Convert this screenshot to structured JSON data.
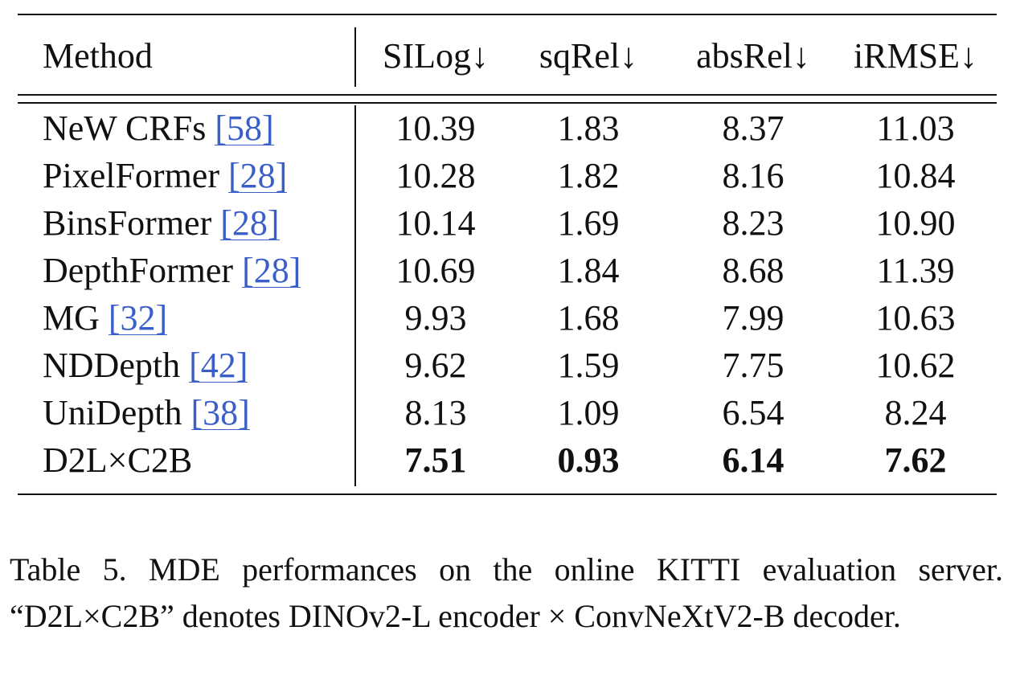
{
  "table": {
    "headers": {
      "method": "Method",
      "silog": "SILog↓",
      "sqrel": "sqRel↓",
      "absrel": "absRel↓",
      "irmse": "iRMSE↓"
    },
    "rows": [
      {
        "method": "NeW CRFs",
        "ref": "[58]",
        "silog": "10.39",
        "sqrel": "1.83",
        "absrel": "8.37",
        "irmse": "11.03"
      },
      {
        "method": "PixelFormer",
        "ref": "[28]",
        "silog": "10.28",
        "sqrel": "1.82",
        "absrel": "8.16",
        "irmse": "10.84"
      },
      {
        "method": "BinsFormer",
        "ref": "[28]",
        "silog": "10.14",
        "sqrel": "1.69",
        "absrel": "8.23",
        "irmse": "10.90"
      },
      {
        "method": "DepthFormer",
        "ref": "[28]",
        "silog": "10.69",
        "sqrel": "1.84",
        "absrel": "8.68",
        "irmse": "11.39"
      },
      {
        "method": "MG",
        "ref": "[32]",
        "silog": "9.93",
        "sqrel": "1.68",
        "absrel": "7.99",
        "irmse": "10.63"
      },
      {
        "method": "NDDepth",
        "ref": "[42]",
        "silog": "9.62",
        "sqrel": "1.59",
        "absrel": "7.75",
        "irmse": "10.62"
      },
      {
        "method": "UniDepth",
        "ref": "[38]",
        "silog": "8.13",
        "sqrel": "1.09",
        "absrel": "6.54",
        "irmse": "8.24"
      },
      {
        "method": "D2L×C2B",
        "ref": "",
        "silog": "7.51",
        "sqrel": "0.93",
        "absrel": "6.14",
        "irmse": "7.62"
      }
    ]
  },
  "caption": {
    "text": "Table 5.   MDE performances on the online KITTI evaluation server.  “D2L×C2B” denotes DINOv2-L encoder × ConvNeXtV2-B decoder."
  },
  "colors": {
    "text": "#111111",
    "link": "#3b5fc9"
  }
}
